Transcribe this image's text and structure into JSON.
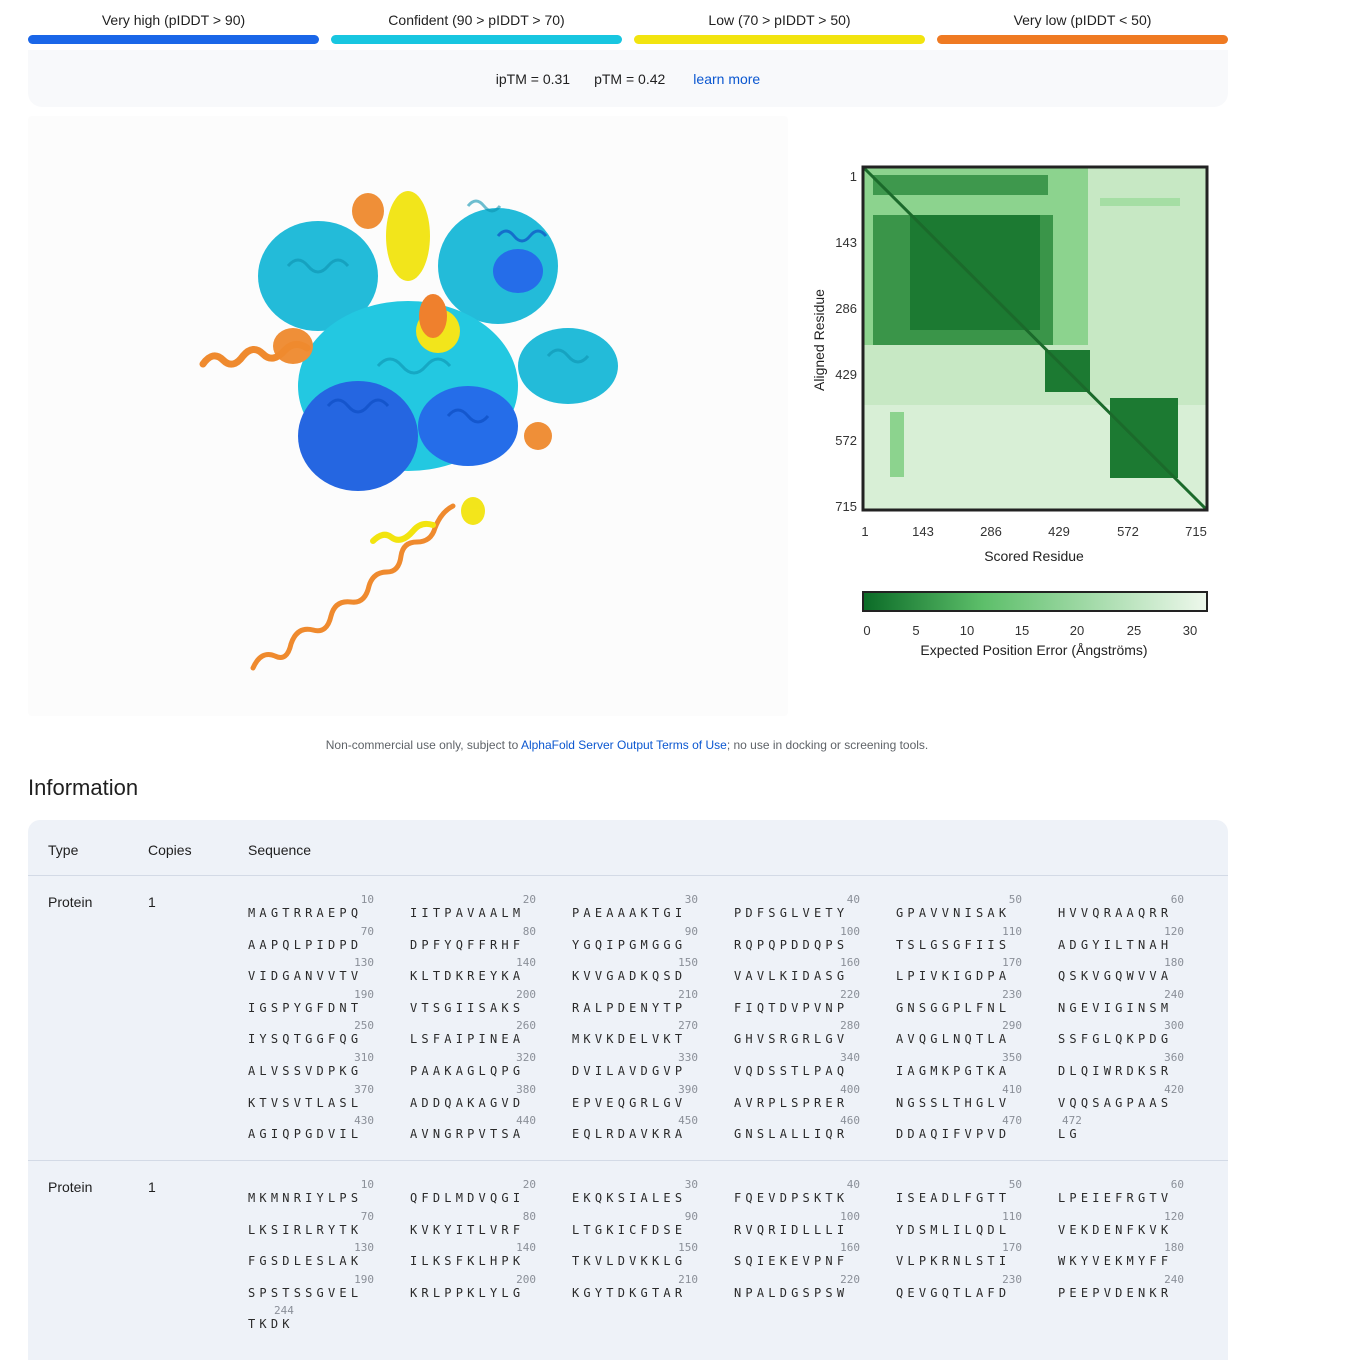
{
  "plddt_legend": [
    {
      "label": "Very high (pIDDT > 90)",
      "color": "#1a66e8"
    },
    {
      "label": "Confident (90 > pIDDT > 70)",
      "color": "#18c6e0"
    },
    {
      "label": "Low (70 > pIDDT > 50)",
      "color": "#f2e40f"
    },
    {
      "label": "Very low (pIDDT < 50)",
      "color": "#ef7a22"
    }
  ],
  "metrics": {
    "iptm": "ipTM = 0.31",
    "ptm": "pTM = 0.42",
    "link": "learn more"
  },
  "pae": {
    "y_axis_label": "Aligned Residue",
    "x_axis_label": "Scored Residue",
    "ticks": [
      "1",
      "143",
      "286",
      "429",
      "572",
      "715"
    ],
    "colorbar_ticks": [
      "0",
      "5",
      "10",
      "15",
      "20",
      "25",
      "30"
    ],
    "colorbar_label": "Expected Position Error (Ångströms)"
  },
  "disclaimer": {
    "before": "Non-commercial use only, subject to ",
    "link": "AlphaFold Server Output Terms of Use",
    "after": "; no use in docking or screening tools."
  },
  "info": {
    "title": "Information",
    "columns": [
      "Type",
      "Copies",
      "Sequence"
    ],
    "entities": [
      {
        "type": "Protein",
        "copies": "1",
        "rows": [
          [
            [
              "10",
              "MAGTRRAEPQ"
            ],
            [
              "20",
              "IITPAVAALM"
            ],
            [
              "30",
              "PAEAAAKTGI"
            ],
            [
              "40",
              "PDFSGLVETY"
            ],
            [
              "50",
              "GPAVVNISAK"
            ],
            [
              "60",
              "HVVQRAAQRR"
            ]
          ],
          [
            [
              "70",
              "AAPQLPIDPD"
            ],
            [
              "80",
              "DPFYQFFRHF"
            ],
            [
              "90",
              "YGQIPGMGGG"
            ],
            [
              "100",
              "RQPQPDDQPS"
            ],
            [
              "110",
              "TSLGSGFIIS"
            ],
            [
              "120",
              "ADGYILTNAH"
            ]
          ],
          [
            [
              "130",
              "VIDGANVVTV"
            ],
            [
              "140",
              "KLTDKREYKA"
            ],
            [
              "150",
              "KVVGADKQSD"
            ],
            [
              "160",
              "VAVLKIDASG"
            ],
            [
              "170",
              "LPIVKIGDPA"
            ],
            [
              "180",
              "QSKVGQWVVA"
            ]
          ],
          [
            [
              "190",
              "IGSPYGFDNT"
            ],
            [
              "200",
              "VTSGIISAKS"
            ],
            [
              "210",
              "RALPDENYTP"
            ],
            [
              "220",
              "FIQTDVPVNP"
            ],
            [
              "230",
              "GNSGGPLFNL"
            ],
            [
              "240",
              "NGEVIGINSM"
            ]
          ],
          [
            [
              "250",
              "IYSQTGGFQG"
            ],
            [
              "260",
              "LSFAIPINEA"
            ],
            [
              "270",
              "MKVKDELVKT"
            ],
            [
              "280",
              "GHVSRGRLGV"
            ],
            [
              "290",
              "AVQGLNQTLA"
            ],
            [
              "300",
              "SSFGLQKPDG"
            ]
          ],
          [
            [
              "310",
              "ALVSSVDPKG"
            ],
            [
              "320",
              "PAAKAGLQPG"
            ],
            [
              "330",
              "DVILAVDGVP"
            ],
            [
              "340",
              "VQDSSTLPAQ"
            ],
            [
              "350",
              "IAGMKPGTKA"
            ],
            [
              "360",
              "DLQIWRDKSR"
            ]
          ],
          [
            [
              "370",
              "KTVSVTLASL"
            ],
            [
              "380",
              "ADDQAKAGVD"
            ],
            [
              "390",
              "EPVEQGRLGV"
            ],
            [
              "400",
              "AVRPLSPRER"
            ],
            [
              "410",
              "NGSSLTHGLV"
            ],
            [
              "420",
              "VQQSAGPAAS"
            ]
          ],
          [
            [
              "430",
              "AGIQPGDVIL"
            ],
            [
              "440",
              "AVNGRPVTSA"
            ],
            [
              "450",
              "EQLRDAVKRA"
            ],
            [
              "460",
              "GNSLALLIQR"
            ],
            [
              "470",
              "DDAQIFVPVD"
            ],
            [
              "472",
              "LG"
            ]
          ]
        ]
      },
      {
        "type": "Protein",
        "copies": "1",
        "rows": [
          [
            [
              "10",
              "MKMNRIYLPS"
            ],
            [
              "20",
              "QFDLMDVQGI"
            ],
            [
              "30",
              "EKQKSIALES"
            ],
            [
              "40",
              "FQEVDPSKTK"
            ],
            [
              "50",
              "ISEADLFGTT"
            ],
            [
              "60",
              "LPEIEFRGTV"
            ]
          ],
          [
            [
              "70",
              "LKSIRLRYTK"
            ],
            [
              "80",
              "KVKYITLVRF"
            ],
            [
              "90",
              "LTGKICFDSE"
            ],
            [
              "100",
              "RVQRIDLLLI"
            ],
            [
              "110",
              "YDSMLILQDL"
            ],
            [
              "120",
              "VEKDENFKVK"
            ]
          ],
          [
            [
              "130",
              "FGSDLESLAK"
            ],
            [
              "140",
              "ILKSFKLHPK"
            ],
            [
              "150",
              "TKVLDVKKLG"
            ],
            [
              "160",
              "SQIEKEVPNF"
            ],
            [
              "170",
              "VLPKRNLSTI"
            ],
            [
              "180",
              "WKYVEKMYFF"
            ]
          ],
          [
            [
              "190",
              "SPSTSSGVEL"
            ],
            [
              "200",
              "KRLPPKLYLG"
            ],
            [
              "210",
              "KGYTDKGTAR"
            ],
            [
              "220",
              "NPALDGSPSW"
            ],
            [
              "230",
              "QEVGQTLAFD"
            ],
            [
              "240",
              "PEEPVDENKR"
            ]
          ],
          [
            [
              "244",
              "TKDK"
            ]
          ]
        ]
      }
    ]
  }
}
